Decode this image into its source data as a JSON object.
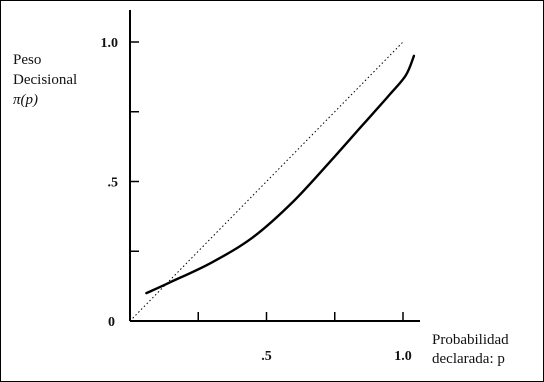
{
  "chart_data": {
    "type": "line",
    "title": "",
    "ylabel_lines": [
      "Peso",
      "Decisional",
      "π(p)"
    ],
    "xlabel_lines": [
      "Probabilidad",
      "declarada: p"
    ],
    "xlim": [
      0,
      1.0
    ],
    "ylim": [
      0,
      1.0
    ],
    "x_tick_values": [
      0.25,
      0.5,
      0.75,
      1.0
    ],
    "y_tick_values": [
      0.25,
      0.5,
      0.75,
      1.0
    ],
    "origin_label": "0",
    "x_tick_labels": [
      {
        "value": 0.5,
        "label": ".5"
      },
      {
        "value": 1.0,
        "label": "1.0"
      }
    ],
    "y_tick_labels": [
      {
        "value": 0.5,
        "label": ".5"
      },
      {
        "value": 1.0,
        "label": "1.0"
      }
    ],
    "grid": false,
    "series": [
      {
        "style": "solid",
        "x": [
          0.06,
          0.15,
          0.3,
          0.45,
          0.6,
          0.75,
          0.85,
          0.95,
          1.01,
          1.04
        ],
        "y": [
          0.1,
          0.14,
          0.21,
          0.3,
          0.43,
          0.59,
          0.7,
          0.81,
          0.88,
          0.95
        ]
      },
      {
        "style": "dotted",
        "x": [
          0.0,
          1.0
        ],
        "y": [
          0.0,
          1.0
        ]
      }
    ]
  }
}
